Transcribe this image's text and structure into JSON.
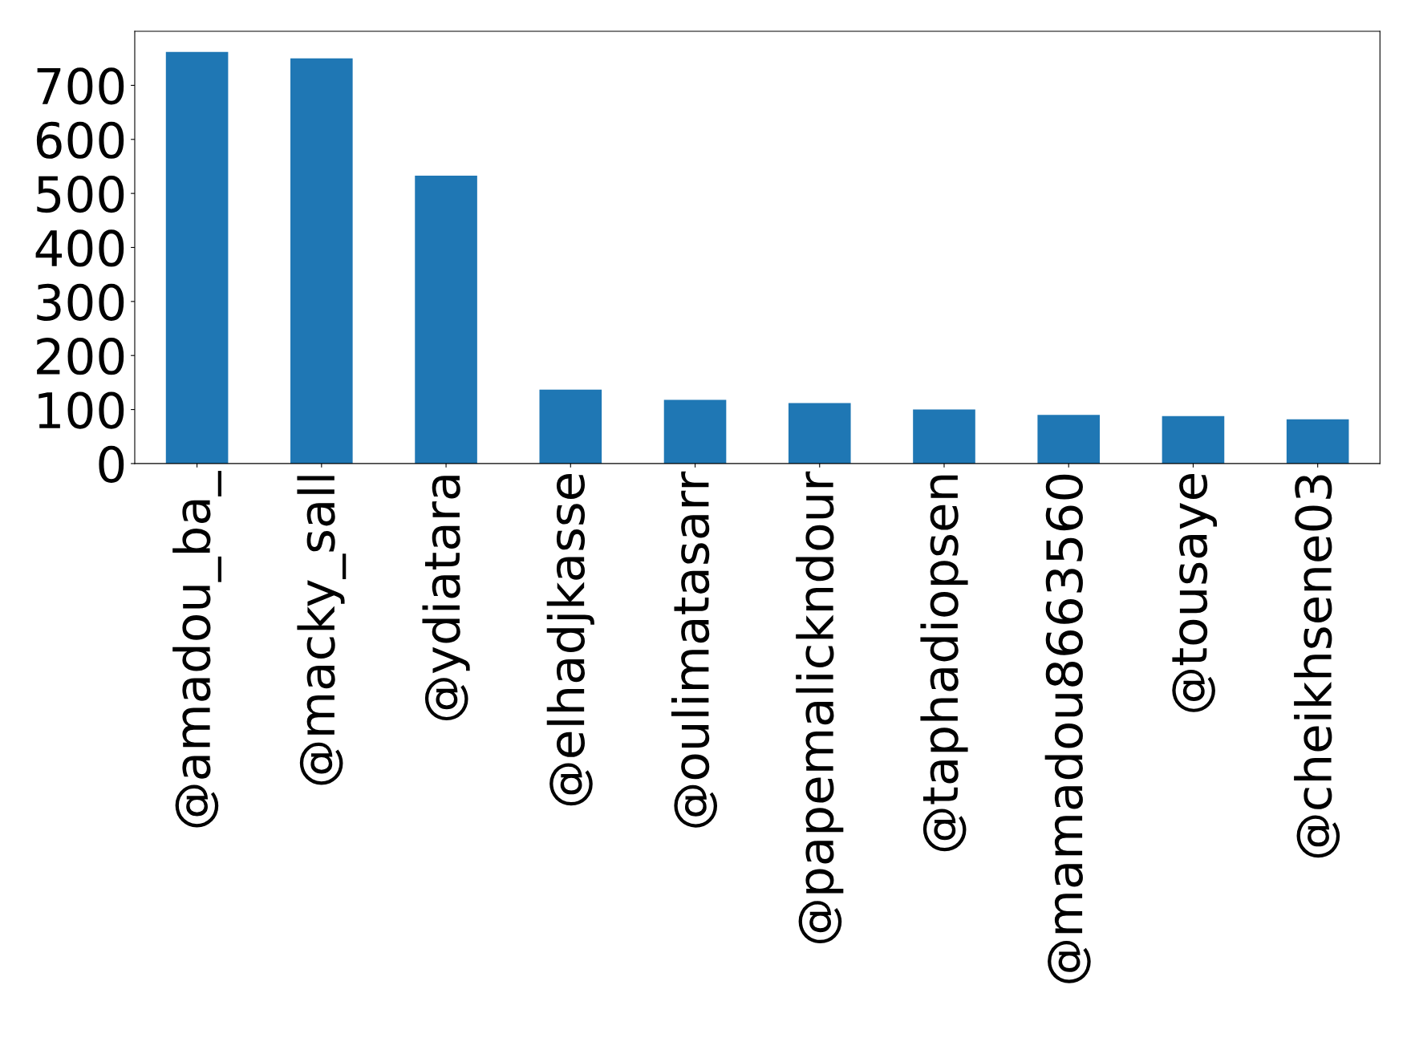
{
  "chart_data": {
    "type": "bar",
    "categories": [
      "@amadou_ba_",
      "@macky_sall",
      "@ydiatara",
      "@elhadjkasse",
      "@oulimatasarr",
      "@papemalickndour",
      "@taphadiopsen",
      "@mamadou8663560",
      "@tousaye",
      "@cheikhsene03"
    ],
    "values": [
      762,
      750,
      533,
      137,
      118,
      112,
      100,
      90,
      88,
      82
    ],
    "color": "#1f77b4",
    "ylim": [
      0,
      800
    ],
    "yticks": [
      0,
      100,
      200,
      300,
      400,
      500,
      600,
      700
    ],
    "grid": false
  }
}
